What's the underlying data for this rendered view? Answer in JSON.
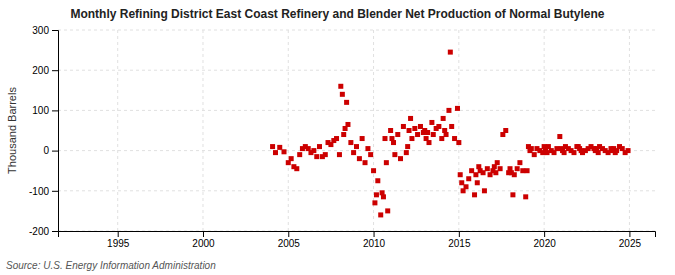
{
  "chart_data": {
    "type": "scatter",
    "title": "Monthly Refining District East Coast Refinery and Blender Net Production of Normal Butylene",
    "ylabel": "Thousand Barrels",
    "annotations": [
      "Source: U.S. Energy Information Administration"
    ],
    "color": "#cc0000",
    "marker": "square",
    "grid": true,
    "xlim": [
      1991.5,
      2026.5
    ],
    "ylim": [
      -200,
      300
    ],
    "xticks": [
      1995,
      2000,
      2005,
      2010,
      2015,
      2020,
      2025
    ],
    "yticks": [
      -200,
      -100,
      0,
      100,
      200,
      300
    ],
    "x": [
      2004.08,
      2004.25,
      2004.5,
      2004.75,
      2005.0,
      2005.17,
      2005.33,
      2005.5,
      2005.67,
      2005.83,
      2006.0,
      2006.17,
      2006.33,
      2006.5,
      2006.67,
      2006.83,
      2007.0,
      2007.17,
      2007.33,
      2007.5,
      2007.67,
      2007.83,
      2008.0,
      2008.08,
      2008.17,
      2008.25,
      2008.33,
      2008.42,
      2008.5,
      2008.67,
      2008.83,
      2009.0,
      2009.17,
      2009.33,
      2009.5,
      2009.67,
      2009.83,
      2010.0,
      2010.08,
      2010.17,
      2010.25,
      2010.42,
      2010.5,
      2010.58,
      2010.67,
      2010.75,
      2010.83,
      2011.0,
      2011.08,
      2011.17,
      2011.25,
      2011.42,
      2011.58,
      2011.75,
      2011.92,
      2012.0,
      2012.08,
      2012.17,
      2012.25,
      2012.42,
      2012.58,
      2012.75,
      2012.92,
      2013.0,
      2013.08,
      2013.17,
      2013.25,
      2013.42,
      2013.5,
      2013.67,
      2013.83,
      2014.0,
      2014.08,
      2014.17,
      2014.25,
      2014.42,
      2014.5,
      2014.58,
      2014.75,
      2014.92,
      2015.0,
      2015.08,
      2015.17,
      2015.25,
      2015.42,
      2015.58,
      2015.75,
      2015.92,
      2016.0,
      2016.08,
      2016.17,
      2016.25,
      2016.42,
      2016.5,
      2016.67,
      2016.83,
      2017.0,
      2017.08,
      2017.17,
      2017.25,
      2017.42,
      2017.58,
      2017.75,
      2017.92,
      2018.0,
      2018.08,
      2018.17,
      2018.25,
      2018.42,
      2018.58,
      2018.75,
      2018.92,
      2019.0,
      2019.08,
      2019.17,
      2019.25,
      2019.42,
      2019.58,
      2019.75,
      2019.92,
      2020.0,
      2020.08,
      2020.17,
      2020.25,
      2020.42,
      2020.58,
      2020.75,
      2020.92,
      2021.0,
      2021.08,
      2021.17,
      2021.25,
      2021.42,
      2021.58,
      2021.75,
      2021.92,
      2022.0,
      2022.08,
      2022.17,
      2022.25,
      2022.42,
      2022.58,
      2022.75,
      2022.92,
      2023.0,
      2023.08,
      2023.17,
      2023.25,
      2023.42,
      2023.58,
      2023.75,
      2023.92,
      2024.0,
      2024.08,
      2024.17,
      2024.25,
      2024.42,
      2024.58,
      2024.75,
      2024.92
    ],
    "values": [
      10,
      -5,
      8,
      -3,
      -30,
      -20,
      -40,
      -45,
      -10,
      5,
      10,
      5,
      -5,
      0,
      -15,
      10,
      -15,
      -10,
      20,
      15,
      25,
      30,
      -10,
      160,
      140,
      40,
      55,
      120,
      65,
      20,
      -5,
      10,
      -20,
      30,
      -30,
      5,
      -10,
      -50,
      -130,
      -110,
      -75,
      -160,
      -105,
      -115,
      30,
      -30,
      -150,
      50,
      30,
      20,
      -10,
      40,
      -20,
      60,
      -5,
      10,
      50,
      80,
      30,
      55,
      40,
      60,
      45,
      50,
      30,
      45,
      20,
      70,
      40,
      55,
      60,
      30,
      80,
      50,
      40,
      100,
      245,
      60,
      30,
      105,
      20,
      -60,
      -80,
      -100,
      -90,
      -70,
      -50,
      -110,
      -60,
      -80,
      -40,
      -50,
      -55,
      -100,
      -45,
      -60,
      -50,
      -40,
      -55,
      -30,
      -45,
      40,
      50,
      -55,
      -45,
      -55,
      -110,
      -60,
      -45,
      -30,
      -50,
      -115,
      -50,
      10,
      0,
      5,
      -10,
      5,
      0,
      -5,
      10,
      5,
      -5,
      10,
      0,
      -5,
      5,
      35,
      5,
      0,
      -5,
      10,
      5,
      0,
      -5,
      10,
      10,
      5,
      0,
      -5,
      0,
      5,
      10,
      5,
      0,
      5,
      -5,
      10,
      5,
      0,
      -5,
      5,
      0,
      5,
      -5,
      0,
      10,
      5,
      -5,
      0
    ]
  }
}
